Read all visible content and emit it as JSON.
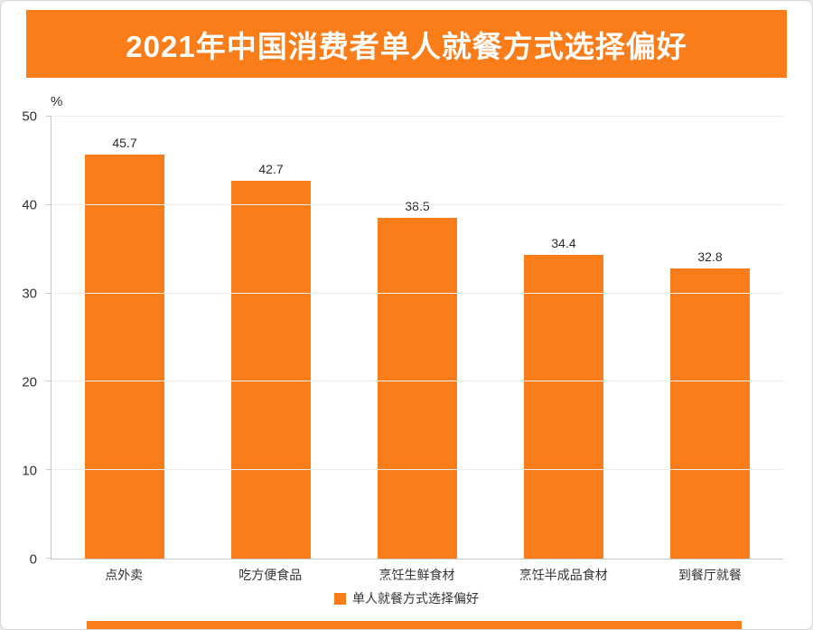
{
  "page": {
    "title": "2021年中国消费者单人就餐方式选择偏好",
    "percent_label": "%"
  },
  "legend": {
    "label": "单人就餐方式选择偏好"
  },
  "colors": {
    "accent": "#fa7d1a",
    "grid": "#ededed",
    "axis": "#c9c9c9",
    "text": "#333333"
  },
  "chart_data": {
    "type": "bar",
    "title": "2021年中国消费者单人就餐方式选择偏好",
    "categories": [
      "点外卖",
      "吃方便食品",
      "烹饪生鲜食材",
      "烹饪半成品食材",
      "到餐厅就餐"
    ],
    "values": [
      45.7,
      42.7,
      38.5,
      34.4,
      32.8
    ],
    "xlabel": "",
    "ylabel": "%",
    "ylim": [
      0,
      50
    ],
    "yticks": [
      0,
      10,
      20,
      30,
      40,
      50
    ],
    "grid": true,
    "legend": [
      "单人就餐方式选择偏好"
    ],
    "legend_position": "bottom"
  }
}
